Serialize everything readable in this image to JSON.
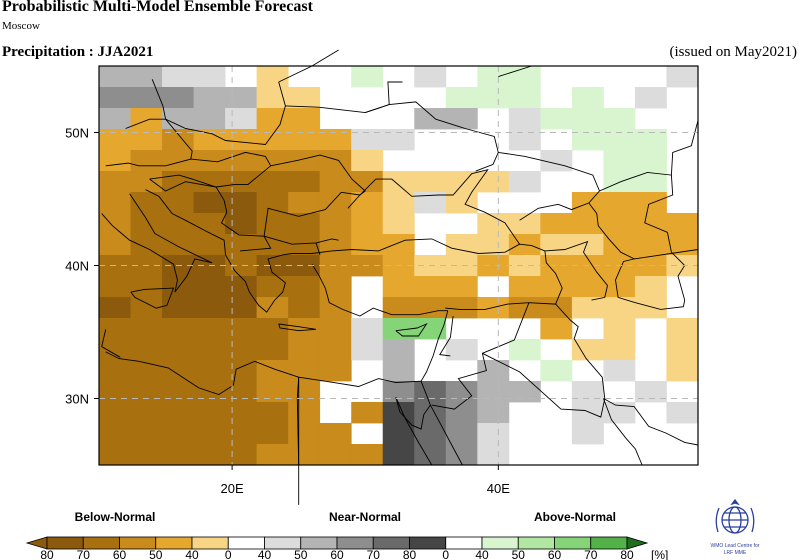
{
  "header": {
    "title": "Probabilistic Multi-Model Ensemble Forecast",
    "subtitle": "Moscow",
    "variable": "Precipitation : JJA2021",
    "issued": "(issued on May2021)"
  },
  "map": {
    "lon_range": [
      10,
      55
    ],
    "lat_range": [
      25,
      55
    ],
    "lat_labels": [
      "50N",
      "40N",
      "30N"
    ],
    "lon_labels": [
      "20E",
      "40E"
    ],
    "lat_values": [
      50,
      40,
      30
    ],
    "lon_values": [
      20,
      40
    ]
  },
  "legend": {
    "below_label": "Below-Normal",
    "near_label": "Near-Normal",
    "above_label": "Above-Normal",
    "tick_labels": [
      "80",
      "70",
      "60",
      "50",
      "40",
      "0",
      "40",
      "50",
      "60",
      "70",
      "80",
      "0",
      "40",
      "50",
      "60",
      "70",
      "80"
    ],
    "unit": "[%]",
    "below_colors": [
      "#8b5a0c",
      "#a8700f",
      "#c98b1c",
      "#e5a72e",
      "#f8d585"
    ],
    "near_colors": [
      "#ffffff",
      "#dcdcdc",
      "#b4b4b4",
      "#8e8e8e",
      "#6a6a6a",
      "#464646"
    ],
    "above_colors": [
      "#ffffff",
      "#d8f5d0",
      "#b1e7a3",
      "#86d478",
      "#53b14a",
      "#1f6e1e"
    ]
  },
  "logo": {
    "line1": "WMO Lead Centre for",
    "line2": "LRF MME"
  }
}
